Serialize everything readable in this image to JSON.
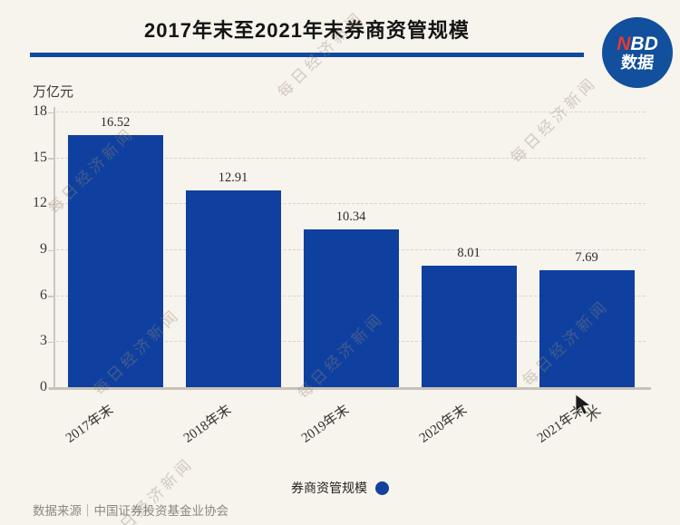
{
  "header": {
    "title": "2017年末至2021年末券商资管规模",
    "logo": {
      "part_red": "N",
      "part_white": "BD",
      "line2": "数据"
    }
  },
  "chart_data": {
    "type": "bar",
    "categories": [
      "2017年末",
      "2018年末",
      "2019年末",
      "2020年末",
      "2021年末"
    ],
    "values": [
      16.52,
      12.91,
      10.34,
      8.01,
      7.69
    ],
    "value_labels": [
      "16.52",
      "12.91",
      "10.34",
      "8.01",
      "7.69"
    ],
    "title": "2017年末至2021年末券商资管规模",
    "xlabel": "",
    "ylabel": "万亿元",
    "y_ticks": [
      18,
      15,
      12,
      9,
      6,
      3,
      0
    ],
    "ylim": [
      0,
      18
    ],
    "grid": "dashed-horizontal",
    "bar_color": "#10409F",
    "legend": {
      "label": "券商资管规模",
      "position": "bottom-center"
    }
  },
  "watermark": {
    "text": "每日经济新闻",
    "star_glyph": "米"
  },
  "footer": {
    "source": "数据来源｜中国证券投资基金业协会"
  },
  "colors": {
    "background": "#F7F3ED",
    "bar": "#10409F",
    "title_rule": "#0E4A9F",
    "logo_circle": "#124F9C",
    "logo_red": "#E8392F",
    "legend_dot": "#12419E"
  }
}
